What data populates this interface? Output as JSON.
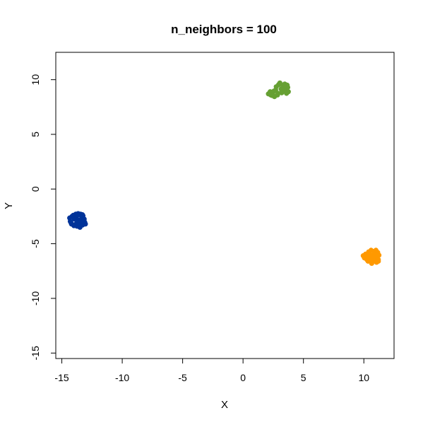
{
  "chart_data": {
    "type": "scatter",
    "title": "n_neighbors = 100",
    "xlabel": "X",
    "ylabel": "Y",
    "xlim": [
      -15.5,
      12.5
    ],
    "ylim": [
      -15.5,
      12.5
    ],
    "xticks": [
      -15,
      -10,
      -5,
      0,
      5,
      10
    ],
    "yticks": [
      -15,
      -10,
      -5,
      0,
      5,
      10
    ],
    "grid": false,
    "legend": "none",
    "series": [
      {
        "color": "#003399",
        "points": [
          [
            -14.35,
            -2.65
          ],
          [
            -14.3,
            -2.95
          ],
          [
            -14.2,
            -3.2
          ],
          [
            -14.05,
            -2.4
          ],
          [
            -14.0,
            -3.35
          ],
          [
            -13.85,
            -2.3
          ],
          [
            -13.8,
            -2.55
          ],
          [
            -13.75,
            -3.4
          ],
          [
            -13.65,
            -2.25
          ],
          [
            -13.6,
            -2.85
          ],
          [
            -13.5,
            -3.5
          ],
          [
            -13.45,
            -2.3
          ],
          [
            -13.35,
            -2.6
          ],
          [
            -13.3,
            -3.3
          ],
          [
            -13.25,
            -2.45
          ],
          [
            -13.15,
            -2.75
          ],
          [
            -13.1,
            -3.05
          ],
          [
            -13.05,
            -3.2
          ],
          [
            -13.4,
            -2.95
          ],
          [
            -13.95,
            -2.75
          ],
          [
            -14.15,
            -2.5
          ],
          [
            -13.7,
            -2.4
          ],
          [
            -13.55,
            -3.15
          ],
          [
            -13.2,
            -2.95
          ],
          [
            -14.25,
            -3.05
          ],
          [
            -13.9,
            -3.25
          ],
          [
            -13.3,
            -2.35
          ],
          [
            -13.75,
            -3.05
          ]
        ]
      },
      {
        "color": "#66a033",
        "points": [
          [
            2.1,
            8.7
          ],
          [
            2.25,
            8.9
          ],
          [
            2.3,
            8.6
          ],
          [
            2.45,
            8.75
          ],
          [
            2.6,
            8.45
          ],
          [
            2.7,
            9.05
          ],
          [
            2.75,
            9.35
          ],
          [
            2.85,
            8.6
          ],
          [
            2.95,
            9.55
          ],
          [
            3.05,
            9.7
          ],
          [
            3.15,
            9.15
          ],
          [
            3.2,
            8.8
          ],
          [
            3.3,
            9.45
          ],
          [
            3.35,
            8.95
          ],
          [
            3.45,
            9.6
          ],
          [
            3.55,
            9.05
          ],
          [
            3.6,
            8.75
          ],
          [
            3.7,
            9.3
          ],
          [
            3.75,
            8.9
          ],
          [
            2.55,
            8.95
          ],
          [
            2.9,
            8.75
          ],
          [
            3.4,
            9.25
          ],
          [
            3.65,
            9.5
          ],
          [
            2.4,
            8.55
          ]
        ]
      },
      {
        "color": "#ff9900",
        "points": [
          [
            9.95,
            -6.1
          ],
          [
            10.05,
            -6.3
          ],
          [
            10.15,
            -5.95
          ],
          [
            10.25,
            -6.45
          ],
          [
            10.3,
            -6.15
          ],
          [
            10.4,
            -5.75
          ],
          [
            10.5,
            -6.55
          ],
          [
            10.55,
            -6.25
          ],
          [
            10.6,
            -5.6
          ],
          [
            10.7,
            -6.05
          ],
          [
            10.75,
            -6.6
          ],
          [
            10.85,
            -5.7
          ],
          [
            10.9,
            -6.35
          ],
          [
            10.95,
            -5.95
          ],
          [
            11.05,
            -6.7
          ],
          [
            11.1,
            -6.2
          ],
          [
            11.15,
            -5.8
          ],
          [
            11.2,
            -6.45
          ],
          [
            11.25,
            -6.05
          ],
          [
            10.35,
            -6.6
          ],
          [
            10.65,
            -6.8
          ],
          [
            10.8,
            -6.15
          ],
          [
            11.0,
            -5.6
          ],
          [
            10.45,
            -5.9
          ],
          [
            11.2,
            -6.6
          ]
        ]
      }
    ]
  }
}
